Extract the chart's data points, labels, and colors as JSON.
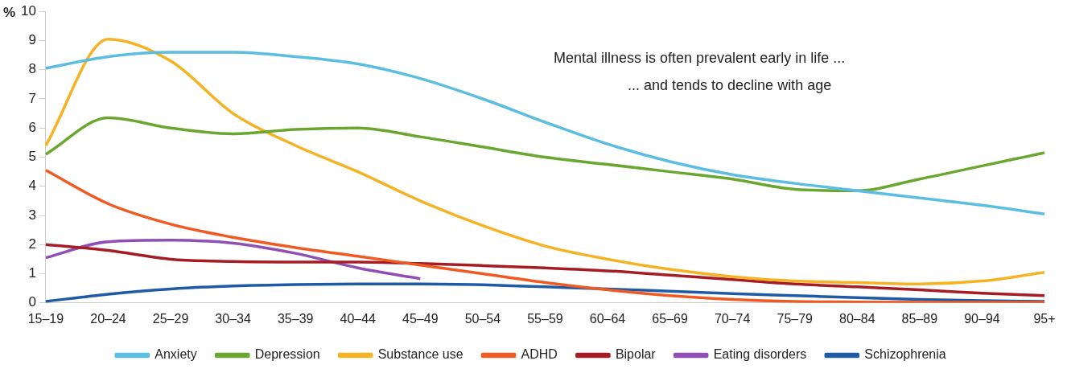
{
  "chart_data": {
    "type": "line",
    "ylabel": "%",
    "categories": [
      "15–19",
      "20–24",
      "25–29",
      "30–34",
      "35–39",
      "40–44",
      "45–49",
      "50–54",
      "55–59",
      "60–64",
      "65–69",
      "70–74",
      "75–79",
      "80–84",
      "85–89",
      "90–94",
      "95+"
    ],
    "series": [
      {
        "name": "Anxiety",
        "color": "#5bbde0",
        "values": [
          8.05,
          8.45,
          8.6,
          8.6,
          8.45,
          8.2,
          7.7,
          7.0,
          6.2,
          5.45,
          4.85,
          4.4,
          4.1,
          3.85,
          3.6,
          3.35,
          3.05
        ]
      },
      {
        "name": "Depression",
        "color": "#6aa730",
        "values": [
          5.1,
          6.35,
          6.0,
          5.8,
          5.95,
          6.0,
          5.7,
          5.35,
          5.0,
          4.75,
          4.5,
          4.25,
          3.9,
          3.85,
          4.25,
          4.7,
          5.15
        ]
      },
      {
        "name": "Substance use",
        "color": "#f5b324",
        "values": [
          5.4,
          9.05,
          8.3,
          6.5,
          5.4,
          4.5,
          3.5,
          2.65,
          1.95,
          1.5,
          1.15,
          0.9,
          0.75,
          0.7,
          0.65,
          0.75,
          1.05
        ]
      },
      {
        "name": "ADHD",
        "color": "#f05a22",
        "values": [
          4.55,
          3.4,
          2.7,
          2.25,
          1.9,
          1.6,
          1.3,
          1.0,
          0.7,
          0.45,
          0.25,
          0.12,
          0.05,
          0.03,
          0.02,
          0.02,
          0.02
        ]
      },
      {
        "name": "Bipolar",
        "color": "#a61c24",
        "values": [
          2.0,
          1.8,
          1.5,
          1.42,
          1.4,
          1.4,
          1.35,
          1.28,
          1.2,
          1.1,
          0.95,
          0.8,
          0.65,
          0.55,
          0.45,
          0.33,
          0.25
        ]
      },
      {
        "name": "Eating disorders",
        "color": "#8f4fb5",
        "values": [
          1.55,
          2.1,
          2.15,
          2.05,
          1.7,
          1.2,
          0.83,
          null,
          null,
          null,
          null,
          null,
          null,
          null,
          null,
          null,
          null
        ]
      },
      {
        "name": "Schizophrenia",
        "color": "#1f5aa6",
        "values": [
          0.05,
          0.3,
          0.48,
          0.58,
          0.63,
          0.65,
          0.65,
          0.62,
          0.55,
          0.48,
          0.4,
          0.32,
          0.25,
          0.18,
          0.12,
          0.08,
          0.05
        ]
      }
    ],
    "ylim": [
      0,
      10
    ],
    "yticks": [
      0,
      1,
      2,
      3,
      4,
      5,
      6,
      7,
      8,
      9,
      10
    ],
    "grid": false,
    "legend": "bottom",
    "marker": "none",
    "line_style": "solid",
    "annotations": [
      "Mental illness is often prevalent early in life ...",
      "... and tends to decline with age"
    ]
  }
}
